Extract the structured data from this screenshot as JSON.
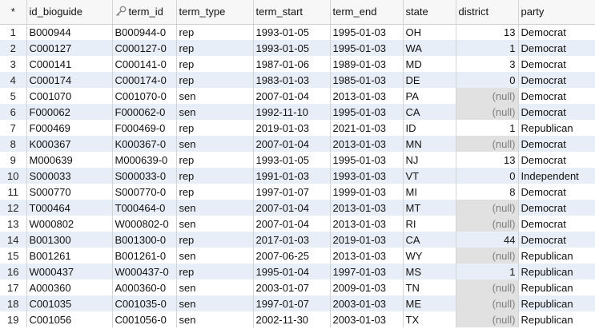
{
  "columns": {
    "rownum": "*",
    "id_bioguide": "id_bioguide",
    "term_id": "term_id",
    "term_type": "term_type",
    "term_start": "term_start",
    "term_end": "term_end",
    "state": "state",
    "district": "district",
    "party": "party"
  },
  "key_icon": "key-icon",
  "rows": [
    {
      "n": "1",
      "id": "B000944",
      "term_id": "B000944-0",
      "type": "rep",
      "start": "1993-01-05",
      "end": "1995-01-03",
      "state": "OH",
      "district": "13",
      "party": "Democrat"
    },
    {
      "n": "2",
      "id": "C000127",
      "term_id": "C000127-0",
      "type": "rep",
      "start": "1993-01-05",
      "end": "1995-01-03",
      "state": "WA",
      "district": "1",
      "party": "Democrat"
    },
    {
      "n": "3",
      "id": "C000141",
      "term_id": "C000141-0",
      "type": "rep",
      "start": "1987-01-06",
      "end": "1989-01-03",
      "state": "MD",
      "district": "3",
      "party": "Democrat"
    },
    {
      "n": "4",
      "id": "C000174",
      "term_id": "C000174-0",
      "type": "rep",
      "start": "1983-01-03",
      "end": "1985-01-03",
      "state": "DE",
      "district": "0",
      "party": "Democrat"
    },
    {
      "n": "5",
      "id": "C001070",
      "term_id": "C001070-0",
      "type": "sen",
      "start": "2007-01-04",
      "end": "2013-01-03",
      "state": "PA",
      "district": "(null)",
      "party": "Democrat"
    },
    {
      "n": "6",
      "id": "F000062",
      "term_id": "F000062-0",
      "type": "sen",
      "start": "1992-11-10",
      "end": "1995-01-03",
      "state": "CA",
      "district": "(null)",
      "party": "Democrat"
    },
    {
      "n": "7",
      "id": "F000469",
      "term_id": "F000469-0",
      "type": "rep",
      "start": "2019-01-03",
      "end": "2021-01-03",
      "state": "ID",
      "district": "1",
      "party": "Republican"
    },
    {
      "n": "8",
      "id": "K000367",
      "term_id": "K000367-0",
      "type": "sen",
      "start": "2007-01-04",
      "end": "2013-01-03",
      "state": "MN",
      "district": "(null)",
      "party": "Democrat"
    },
    {
      "n": "9",
      "id": "M000639",
      "term_id": "M000639-0",
      "type": "rep",
      "start": "1993-01-05",
      "end": "1995-01-03",
      "state": "NJ",
      "district": "13",
      "party": "Democrat"
    },
    {
      "n": "10",
      "id": "S000033",
      "term_id": "S000033-0",
      "type": "rep",
      "start": "1991-01-03",
      "end": "1993-01-03",
      "state": "VT",
      "district": "0",
      "party": "Independent"
    },
    {
      "n": "11",
      "id": "S000770",
      "term_id": "S000770-0",
      "type": "rep",
      "start": "1997-01-07",
      "end": "1999-01-03",
      "state": "MI",
      "district": "8",
      "party": "Democrat"
    },
    {
      "n": "12",
      "id": "T000464",
      "term_id": "T000464-0",
      "type": "sen",
      "start": "2007-01-04",
      "end": "2013-01-03",
      "state": "MT",
      "district": "(null)",
      "party": "Democrat"
    },
    {
      "n": "13",
      "id": "W000802",
      "term_id": "W000802-0",
      "type": "sen",
      "start": "2007-01-04",
      "end": "2013-01-03",
      "state": "RI",
      "district": "(null)",
      "party": "Democrat"
    },
    {
      "n": "14",
      "id": "B001300",
      "term_id": "B001300-0",
      "type": "rep",
      "start": "2017-01-03",
      "end": "2019-01-03",
      "state": "CA",
      "district": "44",
      "party": "Democrat"
    },
    {
      "n": "15",
      "id": "B001261",
      "term_id": "B001261-0",
      "type": "sen",
      "start": "2007-06-25",
      "end": "2013-01-03",
      "state": "WY",
      "district": "(null)",
      "party": "Republican"
    },
    {
      "n": "16",
      "id": "W000437",
      "term_id": "W000437-0",
      "type": "rep",
      "start": "1995-01-04",
      "end": "1997-01-03",
      "state": "MS",
      "district": "1",
      "party": "Republican"
    },
    {
      "n": "17",
      "id": "A000360",
      "term_id": "A000360-0",
      "type": "sen",
      "start": "2003-01-07",
      "end": "2009-01-03",
      "state": "TN",
      "district": "(null)",
      "party": "Republican"
    },
    {
      "n": "18",
      "id": "C001035",
      "term_id": "C001035-0",
      "type": "sen",
      "start": "1997-01-07",
      "end": "2003-01-03",
      "state": "ME",
      "district": "(null)",
      "party": "Republican"
    },
    {
      "n": "19",
      "id": "C001056",
      "term_id": "C001056-0",
      "type": "sen",
      "start": "2002-11-30",
      "end": "2003-01-03",
      "state": "TX",
      "district": "(null)",
      "party": "Republican"
    }
  ]
}
